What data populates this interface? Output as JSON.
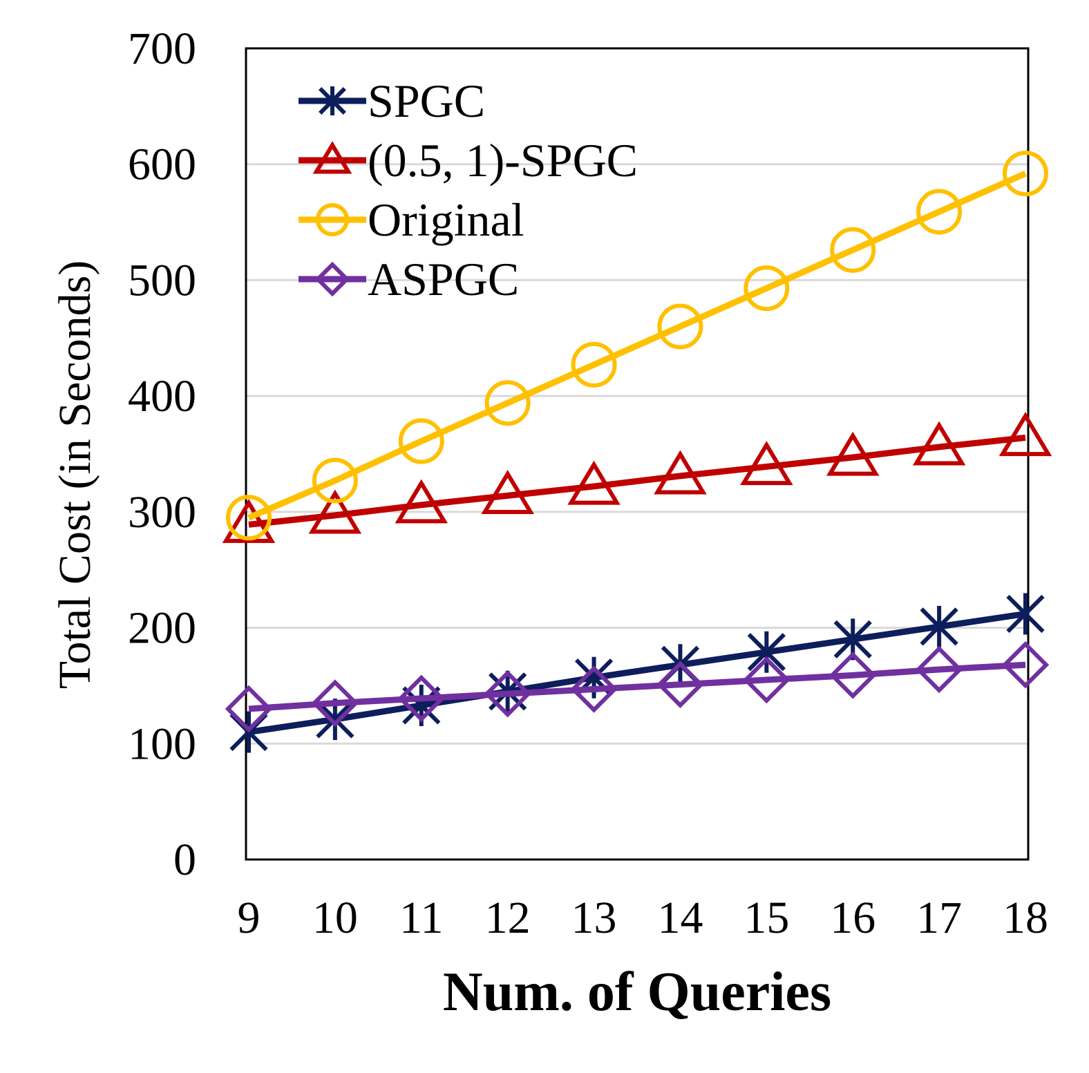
{
  "chart_data": {
    "type": "line",
    "title": "",
    "xlabel": "Num. of Queries",
    "ylabel": "Total Cost (in Seconds)",
    "x": [
      9,
      10,
      11,
      12,
      13,
      14,
      15,
      16,
      17,
      18
    ],
    "xticks": [
      "9",
      "10",
      "11",
      "12",
      "13",
      "14",
      "15",
      "16",
      "17",
      "18"
    ],
    "ylim": [
      0,
      700
    ],
    "yticks": [
      "0",
      "100",
      "200",
      "300",
      "400",
      "500",
      "600",
      "700"
    ],
    "grid": "horizontal",
    "legend_position": "top-left",
    "series": [
      {
        "name": "SPGC",
        "color": "#0D1E5C",
        "marker": "asterisk",
        "values": [
          110,
          121,
          133,
          145,
          157,
          168,
          179,
          190,
          201,
          212
        ]
      },
      {
        "name": "(0.5, 1)-SPGC",
        "color": "#C00000",
        "marker": "triangle",
        "values": [
          289,
          297,
          306,
          314,
          322,
          331,
          339,
          347,
          356,
          364
        ]
      },
      {
        "name": "Original",
        "color": "#FFC000",
        "marker": "circle",
        "values": [
          295,
          327,
          361,
          394,
          427,
          460,
          493,
          526,
          559,
          592
        ]
      },
      {
        "name": "ASPGC",
        "color": "#7030A0",
        "marker": "diamond",
        "values": [
          130,
          135,
          139,
          143,
          147,
          151,
          155,
          159,
          164,
          168
        ]
      }
    ]
  }
}
